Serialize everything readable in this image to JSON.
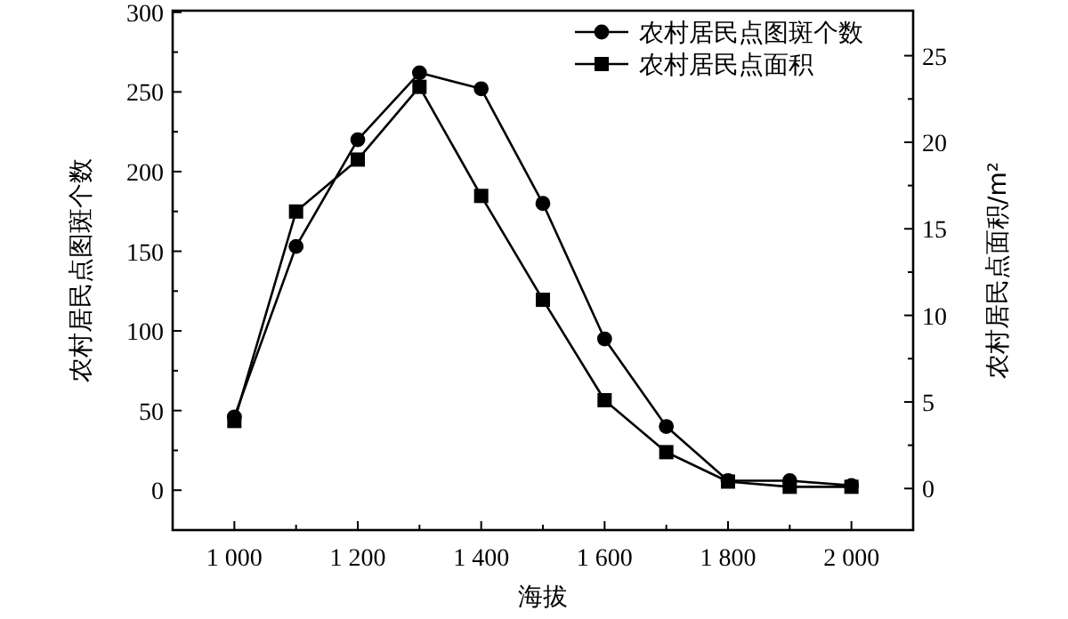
{
  "chart_data": {
    "type": "line",
    "xlabel": "海拔",
    "ylabel": "农村居民点图斑个数",
    "y2label": "农村居民点面积/m²",
    "legend": "top right",
    "grid": false,
    "x": [
      1000,
      1100,
      1200,
      1300,
      1400,
      1500,
      1600,
      1700,
      1800,
      1900,
      2000
    ],
    "series": [
      {
        "name": "农村居民点图斑个数",
        "color": "#000000",
        "marker": "circle",
        "values": [
          46,
          153,
          220,
          262,
          252,
          180,
          95,
          40,
          6,
          6,
          3
        ]
      },
      {
        "name": "农村居民点面积",
        "color": "#000000",
        "marker": "square",
        "axis": "y2",
        "values": [
          3.9,
          16.0,
          19.0,
          23.2,
          16.9,
          10.9,
          5.1,
          2.1,
          0.4,
          0.1,
          0.1
        ]
      }
    ],
    "xlim": [
      900,
      2100
    ],
    "xticks": [
      {
        "value": 1000,
        "label": "1 000"
      },
      {
        "value": 1100,
        "label": null
      },
      {
        "value": 1200,
        "label": "1 200"
      },
      {
        "value": 1300,
        "label": null
      },
      {
        "value": 1400,
        "label": "1 400"
      },
      {
        "value": 1500,
        "label": null
      },
      {
        "value": 1600,
        "label": "1 600"
      },
      {
        "value": 1700,
        "label": null
      },
      {
        "value": 1800,
        "label": "1 800"
      },
      {
        "value": 1900,
        "label": null
      },
      {
        "value": 2000,
        "label": "2 000"
      }
    ],
    "ylim": [
      -25,
      301
    ],
    "yticks": [
      0,
      {
        "value": 25,
        "label": null
      },
      50,
      {
        "value": 75,
        "label": null
      },
      100,
      {
        "value": 125,
        "label": null
      },
      150,
      {
        "value": 175,
        "label": null
      },
      200,
      {
        "value": 225,
        "label": null
      },
      250,
      {
        "value": 275,
        "label": null
      },
      300
    ],
    "y2lim": [
      -2.4,
      27.6
    ],
    "y2ticks": [
      0,
      {
        "value": 2.5,
        "label": null
      },
      5,
      {
        "value": 7.5,
        "label": null
      },
      10,
      {
        "value": 12.5,
        "label": null
      },
      15,
      {
        "value": 17.5,
        "label": null
      },
      20,
      {
        "value": 22.5,
        "label": null
      },
      25
    ]
  }
}
